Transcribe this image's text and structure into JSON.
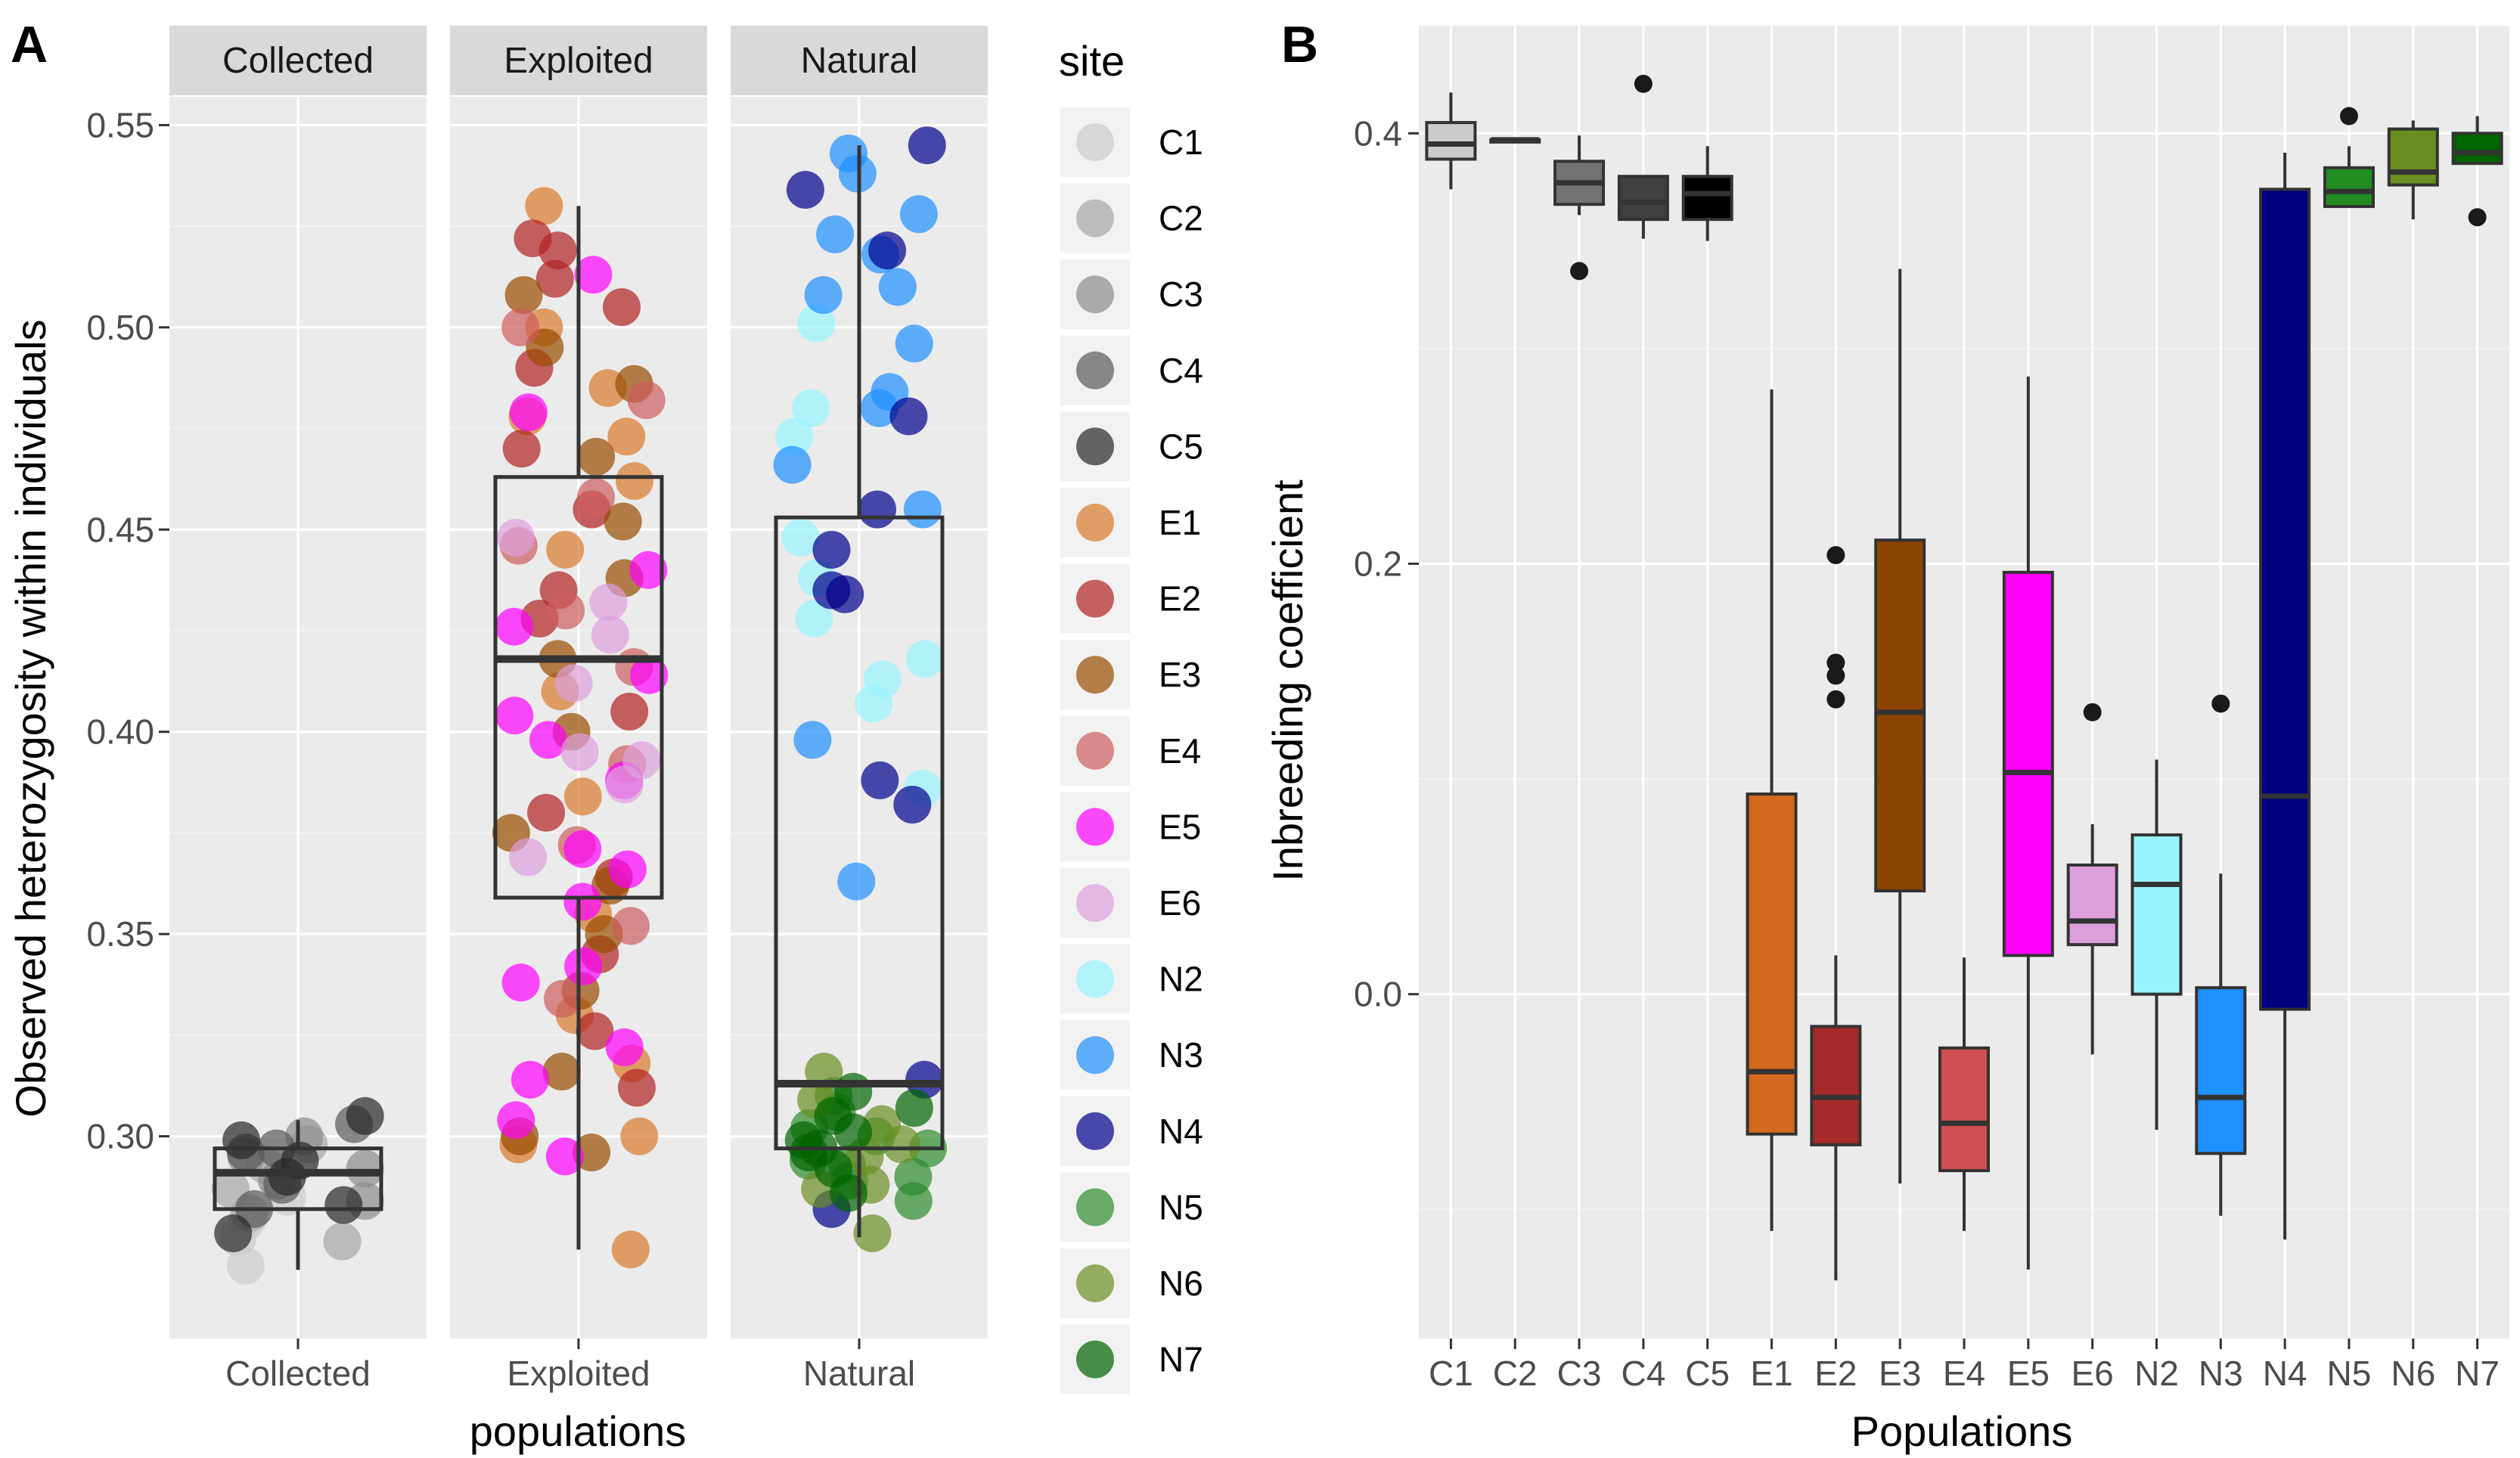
{
  "chart_data": [
    {
      "panel": "A",
      "type": "scatter",
      "subtype": "faceted jittered points with boxplots",
      "facets": [
        "Collected",
        "Exploited",
        "Natural"
      ],
      "xlabel": "populations",
      "ylabel": "Observed heterozygosity within individuals",
      "ylim": [
        0.25,
        0.557
      ],
      "yticks": [
        0.3,
        0.35,
        0.4,
        0.45,
        0.5,
        0.55
      ],
      "ytick_labels": [
        "0.30",
        "0.35",
        "0.40",
        "0.45",
        "0.50",
        "0.55"
      ],
      "legend_title": "site",
      "legend_position": "right",
      "point_alpha": 0.7,
      "boxes": [
        {
          "facet": "Collected",
          "whisker_low": 0.267,
          "q1": 0.282,
          "median": 0.291,
          "q3": 0.297,
          "whisker_high": 0.304
        },
        {
          "facet": "Exploited",
          "whisker_low": 0.272,
          "q1": 0.359,
          "median": 0.418,
          "q3": 0.463,
          "whisker_high": 0.53
        },
        {
          "facet": "Natural",
          "whisker_low": 0.275,
          "q1": 0.297,
          "median": 0.313,
          "q3": 0.453,
          "whisker_high": 0.545
        }
      ],
      "series": [
        {
          "name": "C1",
          "facet": "Collected",
          "color": "#cccccc",
          "values": [
            0.275,
            0.268,
            0.285,
            0.29,
            0.279
          ]
        },
        {
          "name": "C2",
          "facet": "Collected",
          "color": "#a6a6a6",
          "values": [
            0.293,
            0.287,
            0.298,
            0.281,
            0.274
          ]
        },
        {
          "name": "C3",
          "facet": "Collected",
          "color": "#8c8c8c",
          "values": [
            0.292,
            0.3,
            0.295,
            0.284,
            0.289
          ]
        },
        {
          "name": "C4",
          "facet": "Collected",
          "color": "#595959",
          "values": [
            0.296,
            0.303,
            0.288,
            0.297,
            0.282
          ]
        },
        {
          "name": "C5",
          "facet": "Collected",
          "color": "#262626",
          "values": [
            0.305,
            0.29,
            0.276,
            0.283,
            0.294,
            0.299
          ]
        },
        {
          "name": "E1",
          "facet": "Exploited",
          "color": "#d97b2b",
          "values": [
            0.53,
            0.478,
            0.473,
            0.462,
            0.445,
            0.384,
            0.355,
            0.33,
            0.318,
            0.298,
            0.3,
            0.272,
            0.5,
            0.485,
            0.41
          ]
        },
        {
          "name": "E2",
          "facet": "Exploited",
          "color": "#b22222",
          "values": [
            0.522,
            0.519,
            0.512,
            0.505,
            0.49,
            0.47,
            0.455,
            0.435,
            0.428,
            0.405,
            0.38,
            0.364,
            0.345,
            0.326,
            0.312
          ]
        },
        {
          "name": "E3",
          "facet": "Exploited",
          "color": "#994c00",
          "values": [
            0.508,
            0.495,
            0.486,
            0.468,
            0.452,
            0.438,
            0.418,
            0.4,
            0.375,
            0.362,
            0.35,
            0.336,
            0.316,
            0.3,
            0.296
          ]
        },
        {
          "name": "E4",
          "facet": "Exploited",
          "color": "#cd5c5c",
          "values": [
            0.5,
            0.482,
            0.458,
            0.446,
            0.43,
            0.416,
            0.392,
            0.372,
            0.352,
            0.334
          ]
        },
        {
          "name": "E5",
          "facet": "Exploited",
          "color": "#ff00ff",
          "values": [
            0.513,
            0.479,
            0.44,
            0.426,
            0.404,
            0.398,
            0.388,
            0.371,
            0.358,
            0.342,
            0.338,
            0.322,
            0.314,
            0.304,
            0.295,
            0.366,
            0.414
          ]
        },
        {
          "name": "E6",
          "facet": "Exploited",
          "color": "#dd9fdd",
          "values": [
            0.448,
            0.432,
            0.424,
            0.395,
            0.393,
            0.387,
            0.369,
            0.412
          ]
        },
        {
          "name": "N2",
          "facet": "Natural",
          "color": "#98f5ff",
          "values": [
            0.501,
            0.48,
            0.473,
            0.448,
            0.438,
            0.428,
            0.418,
            0.413,
            0.407,
            0.386
          ]
        },
        {
          "name": "N3",
          "facet": "Natural",
          "color": "#1e90ff",
          "values": [
            0.543,
            0.538,
            0.528,
            0.523,
            0.518,
            0.51,
            0.508,
            0.496,
            0.484,
            0.48,
            0.466,
            0.455,
            0.398,
            0.363
          ]
        },
        {
          "name": "N4",
          "facet": "Natural",
          "color": "#00008b",
          "values": [
            0.545,
            0.534,
            0.519,
            0.478,
            0.455,
            0.445,
            0.435,
            0.434,
            0.388,
            0.382,
            0.314,
            0.282
          ]
        },
        {
          "name": "N5",
          "facet": "Natural",
          "color": "#2e8b2e",
          "values": [
            0.31,
            0.302,
            0.297,
            0.293,
            0.289,
            0.306,
            0.3,
            0.294,
            0.29,
            0.284
          ]
        },
        {
          "name": "N6",
          "facet": "Natural",
          "color": "#6b8e23",
          "values": [
            0.316,
            0.309,
            0.298,
            0.287,
            0.276,
            0.303,
            0.295,
            0.288
          ]
        },
        {
          "name": "N7",
          "facet": "Natural",
          "color": "#006400",
          "values": [
            0.311,
            0.305,
            0.301,
            0.296,
            0.292,
            0.299,
            0.297,
            0.286,
            0.307
          ]
        }
      ]
    },
    {
      "panel": "B",
      "type": "boxplot",
      "xlabel": "Populations",
      "ylabel": "Inbreeding coefficient",
      "categories": [
        "C1",
        "C2",
        "C3",
        "C4",
        "C5",
        "E1",
        "E2",
        "E3",
        "E4",
        "E5",
        "E6",
        "N2",
        "N3",
        "N4",
        "N5",
        "N6",
        "N7"
      ],
      "ylim": [
        -0.16,
        0.45
      ],
      "yticks": [
        0.0,
        0.2,
        0.4
      ],
      "ytick_labels": [
        "0.0",
        "0.2",
        "0.4"
      ],
      "boxes": [
        {
          "name": "C1",
          "color": "#cccccc",
          "whisker_low": 0.374,
          "q1": 0.388,
          "median": 0.395,
          "q3": 0.405,
          "whisker_high": 0.419,
          "outliers": []
        },
        {
          "name": "C2",
          "color": "#a6a6a6",
          "whisker_low": 0.396,
          "q1": 0.396,
          "median": 0.397,
          "q3": 0.397,
          "whisker_high": 0.397,
          "outliers": []
        },
        {
          "name": "C3",
          "color": "#737373",
          "whisker_low": 0.362,
          "q1": 0.367,
          "median": 0.377,
          "q3": 0.387,
          "whisker_high": 0.399,
          "outliers": [
            0.336
          ]
        },
        {
          "name": "C4",
          "color": "#404040",
          "whisker_low": 0.351,
          "q1": 0.36,
          "median": 0.368,
          "q3": 0.38,
          "whisker_high": 0.38,
          "outliers": [
            0.423
          ]
        },
        {
          "name": "C5",
          "color": "#000000",
          "whisker_low": 0.35,
          "q1": 0.36,
          "median": 0.372,
          "q3": 0.38,
          "whisker_high": 0.394,
          "outliers": []
        },
        {
          "name": "E1",
          "color": "#d2691e",
          "whisker_low": -0.11,
          "q1": -0.065,
          "median": -0.036,
          "q3": 0.093,
          "whisker_high": 0.281,
          "outliers": []
        },
        {
          "name": "E2",
          "color": "#a52a2a",
          "whisker_low": -0.133,
          "q1": -0.07,
          "median": -0.048,
          "q3": -0.015,
          "whisker_high": 0.018,
          "outliers": [
            0.204,
            0.154,
            0.148,
            0.137
          ]
        },
        {
          "name": "E3",
          "color": "#8b4500",
          "whisker_low": -0.088,
          "q1": 0.048,
          "median": 0.131,
          "q3": 0.211,
          "whisker_high": 0.337,
          "outliers": []
        },
        {
          "name": "E4",
          "color": "#cd4f4f",
          "whisker_low": -0.11,
          "q1": -0.082,
          "median": -0.06,
          "q3": -0.025,
          "whisker_high": 0.017,
          "outliers": []
        },
        {
          "name": "E5",
          "color": "#ff00ff",
          "whisker_low": -0.128,
          "q1": 0.018,
          "median": 0.103,
          "q3": 0.196,
          "whisker_high": 0.287,
          "outliers": []
        },
        {
          "name": "E6",
          "color": "#dda0dd",
          "whisker_low": -0.028,
          "q1": 0.023,
          "median": 0.034,
          "q3": 0.06,
          "whisker_high": 0.079,
          "outliers": [
            0.131
          ]
        },
        {
          "name": "N2",
          "color": "#98f5ff",
          "whisker_low": -0.063,
          "q1": 0.0,
          "median": 0.051,
          "q3": 0.074,
          "whisker_high": 0.109,
          "outliers": []
        },
        {
          "name": "N3",
          "color": "#1e90ff",
          "whisker_low": -0.103,
          "q1": -0.074,
          "median": -0.048,
          "q3": 0.003,
          "whisker_high": 0.056,
          "outliers": [
            0.135
          ]
        },
        {
          "name": "N4",
          "color": "#000080",
          "whisker_low": -0.114,
          "q1": -0.007,
          "median": 0.092,
          "q3": 0.374,
          "whisker_high": 0.391,
          "outliers": []
        },
        {
          "name": "N5",
          "color": "#228b22",
          "whisker_low": 0.366,
          "q1": 0.366,
          "median": 0.373,
          "q3": 0.384,
          "whisker_high": 0.394,
          "outliers": [
            0.408
          ]
        },
        {
          "name": "N6",
          "color": "#6b8e23",
          "whisker_low": 0.36,
          "q1": 0.376,
          "median": 0.382,
          "q3": 0.402,
          "whisker_high": 0.406,
          "outliers": []
        },
        {
          "name": "N7",
          "color": "#006400",
          "whisker_low": 0.386,
          "q1": 0.386,
          "median": 0.391,
          "q3": 0.4,
          "whisker_high": 0.408,
          "outliers": [
            0.361
          ]
        }
      ]
    }
  ]
}
